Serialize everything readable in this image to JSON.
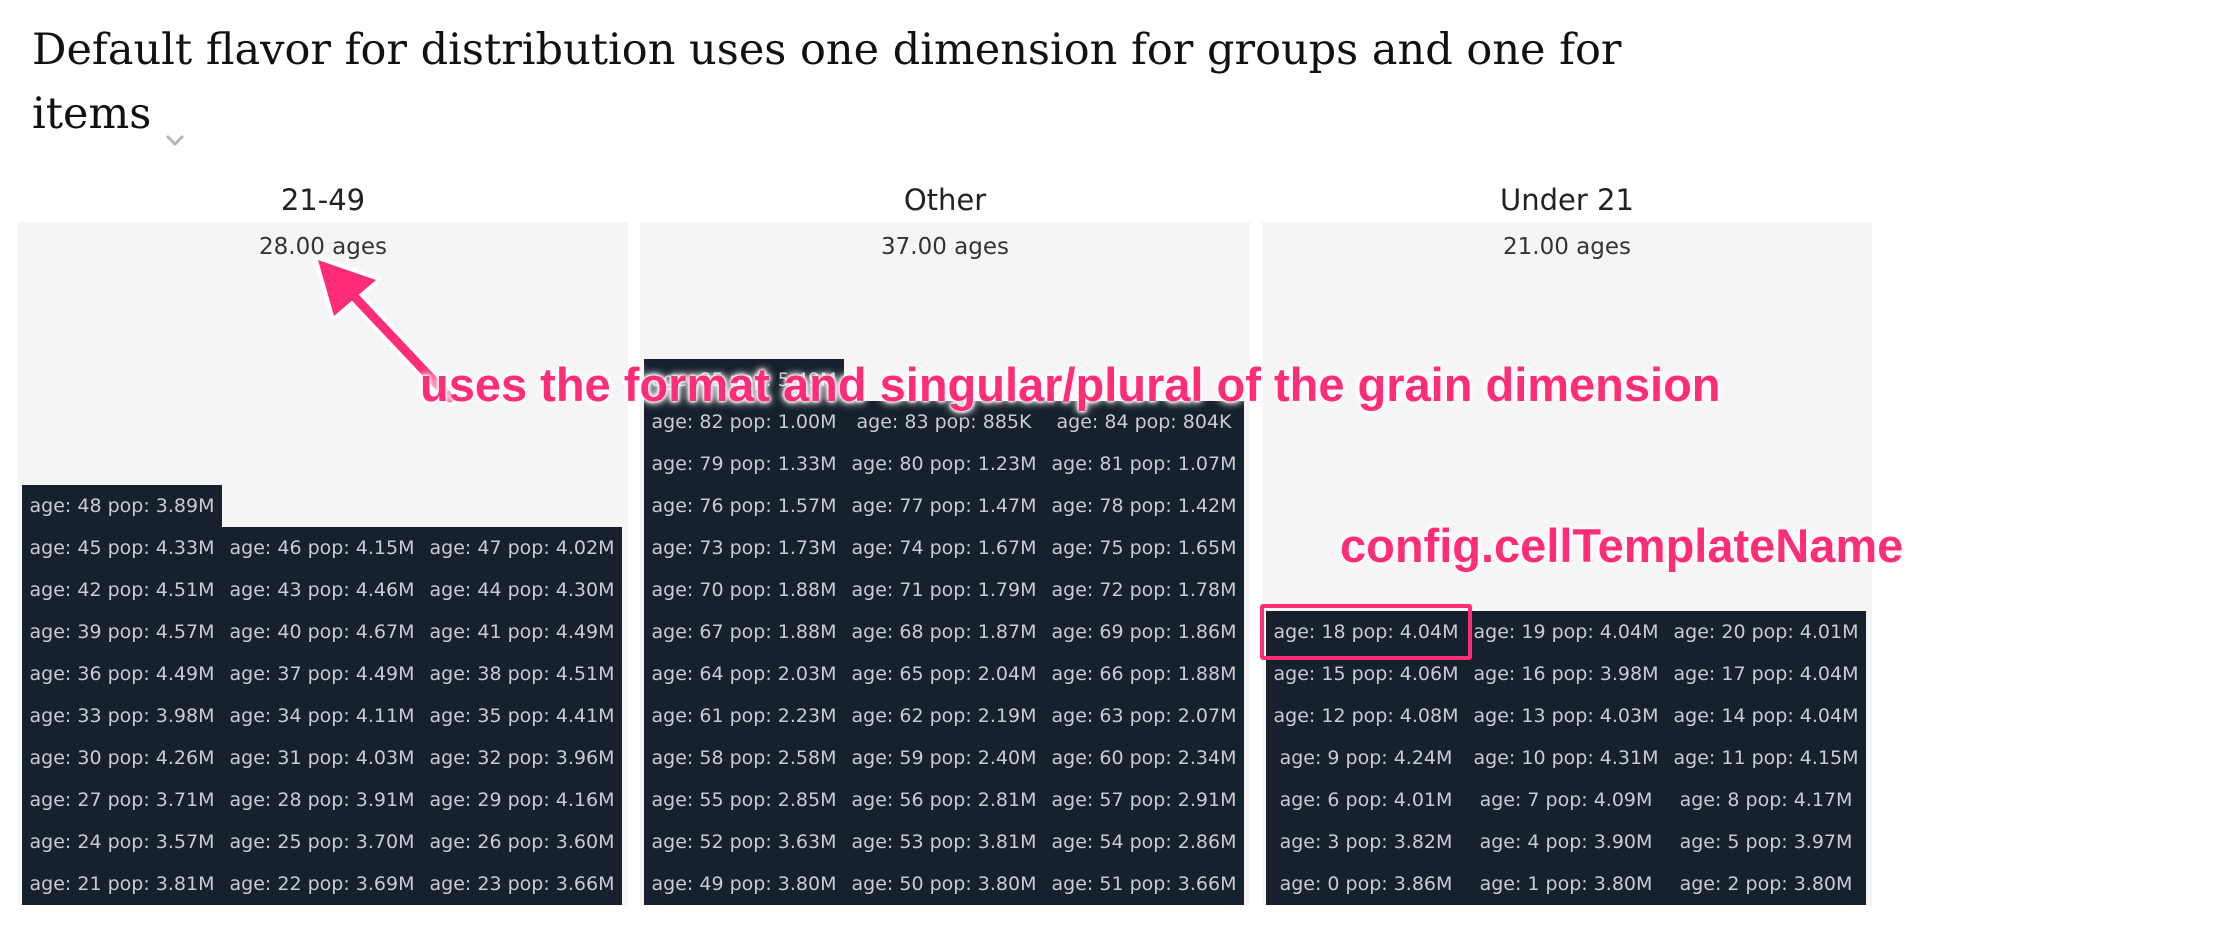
{
  "title": "Default flavor for distribution uses one dimension for groups and one for items",
  "groups": [
    {
      "label": "21-49",
      "summary": "28.00 ages",
      "cells": [
        "age: 21 pop: 3.81M",
        "age: 22 pop: 3.69M",
        "age: 23 pop: 3.66M",
        "age: 24 pop: 3.57M",
        "age: 25 pop: 3.70M",
        "age: 26 pop: 3.60M",
        "age: 27 pop: 3.71M",
        "age: 28 pop: 3.91M",
        "age: 29 pop: 4.16M",
        "age: 30 pop: 4.26M",
        "age: 31 pop: 4.03M",
        "age: 32 pop: 3.96M",
        "age: 33 pop: 3.98M",
        "age: 34 pop: 4.11M",
        "age: 35 pop: 4.41M",
        "age: 36 pop: 4.49M",
        "age: 37 pop: 4.49M",
        "age: 38 pop: 4.51M",
        "age: 39 pop: 4.57M",
        "age: 40 pop: 4.67M",
        "age: 41 pop: 4.49M",
        "age: 42 pop: 4.51M",
        "age: 43 pop: 4.46M",
        "age: 44 pop: 4.30M",
        "age: 45 pop: 4.33M",
        "age: 46 pop: 4.15M",
        "age: 47 pop: 4.02M",
        "age: 48 pop: 3.89M"
      ]
    },
    {
      "label": "Other",
      "summary": "37.00 ages",
      "cells": [
        "age: 49 pop: 3.80M",
        "age: 50 pop: 3.80M",
        "age: 51 pop: 3.66M",
        "age: 52 pop: 3.63M",
        "age: 53 pop: 3.81M",
        "age: 54 pop: 2.86M",
        "age: 55 pop: 2.85M",
        "age: 56 pop: 2.81M",
        "age: 57 pop: 2.91M",
        "age: 58 pop: 2.58M",
        "age: 59 pop: 2.40M",
        "age: 60 pop: 2.34M",
        "age: 61 pop: 2.23M",
        "age: 62 pop: 2.19M",
        "age: 63 pop: 2.07M",
        "age: 64 pop: 2.03M",
        "age: 65 pop: 2.04M",
        "age: 66 pop: 1.88M",
        "age: 67 pop: 1.88M",
        "age: 68 pop: 1.87M",
        "age: 69 pop: 1.86M",
        "age: 70 pop: 1.88M",
        "age: 71 pop: 1.79M",
        "age: 72 pop: 1.78M",
        "age: 73 pop: 1.73M",
        "age: 74 pop: 1.67M",
        "age: 75 pop: 1.65M",
        "age: 76 pop: 1.57M",
        "age: 77 pop: 1.47M",
        "age: 78 pop: 1.42M",
        "age: 79 pop: 1.33M",
        "age: 80 pop: 1.23M",
        "age: 81 pop: 1.07M",
        "age: 82 pop: 1.00M",
        "age: 83 pop: 885K",
        "age: 84 pop: 804K",
        "age: 85 pop: 5.49M"
      ]
    },
    {
      "label": "Under 21",
      "summary": "21.00 ages",
      "cells": [
        "age: 0 pop: 3.86M",
        "age: 1 pop: 3.80M",
        "age: 2 pop: 3.80M",
        "age: 3 pop: 3.82M",
        "age: 4 pop: 3.90M",
        "age: 5 pop: 3.97M",
        "age: 6 pop: 4.01M",
        "age: 7 pop: 4.09M",
        "age: 8 pop: 4.17M",
        "age: 9 pop: 4.24M",
        "age: 10 pop: 4.31M",
        "age: 11 pop: 4.15M",
        "age: 12 pop: 4.08M",
        "age: 13 pop: 4.03M",
        "age: 14 pop: 4.04M",
        "age: 15 pop: 4.06M",
        "age: 16 pop: 3.98M",
        "age: 17 pop: 4.04M",
        "age: 18 pop: 4.04M",
        "age: 19 pop: 4.04M",
        "age: 20 pop: 4.01M"
      ]
    }
  ],
  "annotations": {
    "grain": "uses the format and singular/plural of the grain dimension",
    "config": "config.cellTemplateName"
  },
  "colors": {
    "cell_bg": "#17212d",
    "cell_text": "#c6ccd3",
    "group_bg": "#f5f5f5",
    "annotation": "#ff2d78"
  },
  "icons": {
    "title_dropdown": "chevron-down-icon",
    "arrow": "arrow-icon"
  }
}
